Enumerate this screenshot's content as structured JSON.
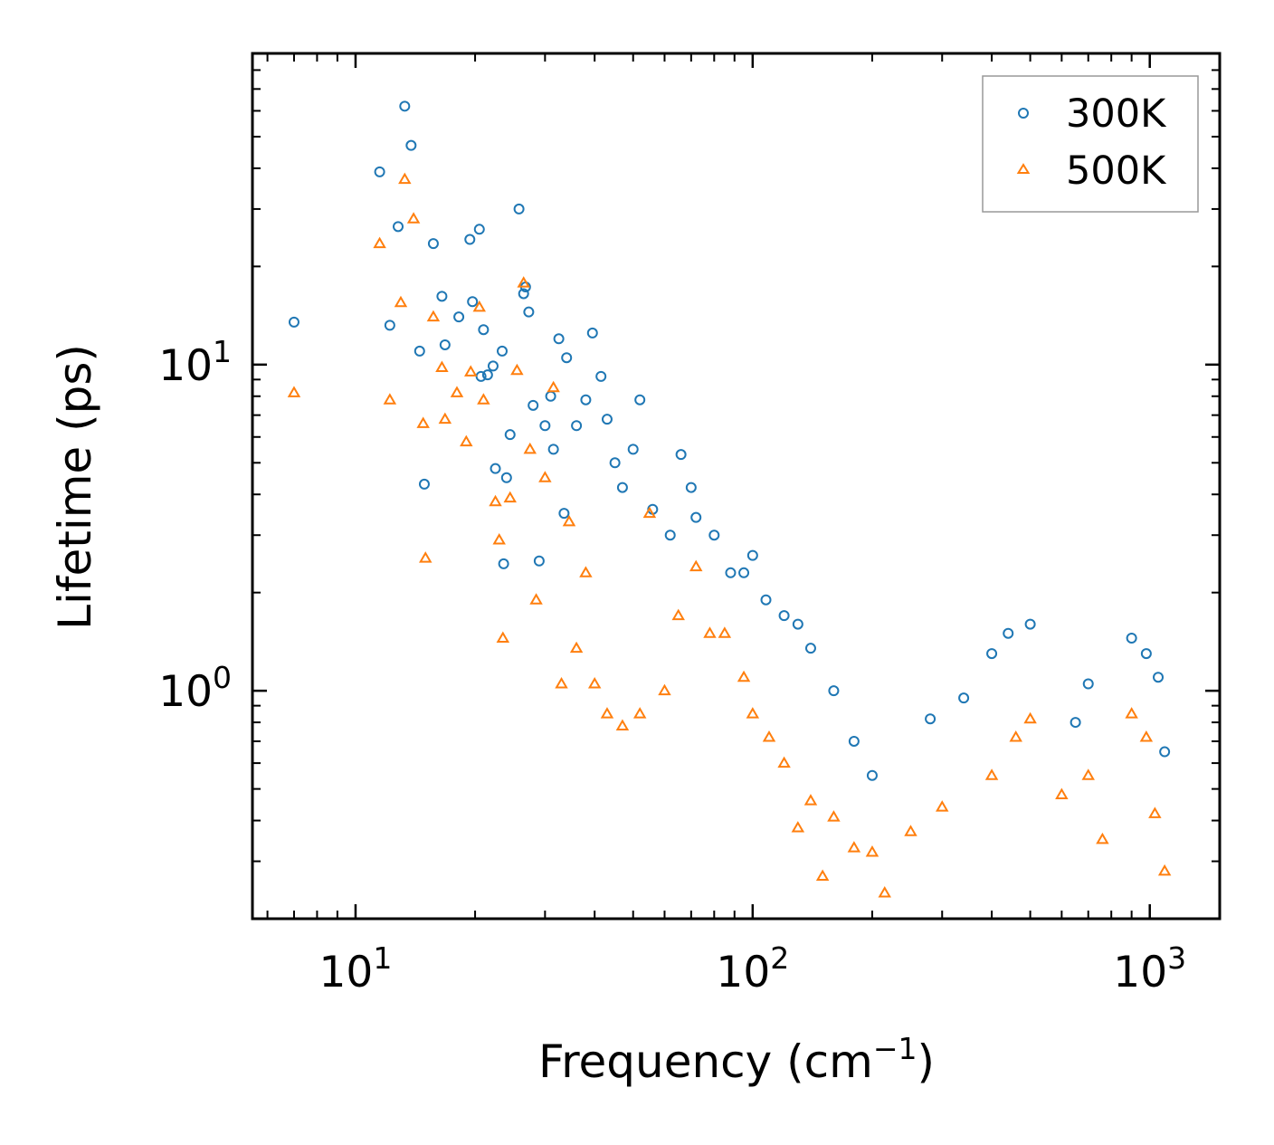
{
  "chart_data": {
    "type": "scatter",
    "xscale": "log",
    "yscale": "log",
    "xlabel": "Frequency (cm",
    "xlabel_sup": "−1",
    "xlabel_end": ")",
    "ylabel": "Lifetime (ps)",
    "xlim": [
      5.5,
      1500
    ],
    "ylim": [
      0.2,
      90
    ],
    "x_ticks": [
      {
        "value": 10,
        "base": "10",
        "exp": "1"
      },
      {
        "value": 100,
        "base": "10",
        "exp": "2"
      },
      {
        "value": 1000,
        "base": "10",
        "exp": "3"
      }
    ],
    "y_ticks": [
      {
        "value": 1,
        "base": "10",
        "exp": "0"
      },
      {
        "value": 10,
        "base": "10",
        "exp": "1"
      }
    ],
    "legend_position": "top-right",
    "series": [
      {
        "name": "300K",
        "marker": "circle",
        "color": "#1f77b4",
        "points": [
          [
            7.0,
            13.5
          ],
          [
            11.5,
            39
          ],
          [
            12.2,
            13.2
          ],
          [
            12.8,
            26.5
          ],
          [
            13.3,
            62
          ],
          [
            13.8,
            47
          ],
          [
            14.5,
            11.0
          ],
          [
            14.9,
            4.3
          ],
          [
            15.7,
            23.5
          ],
          [
            16.5,
            16.2
          ],
          [
            16.8,
            11.5
          ],
          [
            18.2,
            14.0
          ],
          [
            19.4,
            24.2
          ],
          [
            19.7,
            15.6
          ],
          [
            20.5,
            26
          ],
          [
            20.7,
            9.2
          ],
          [
            21.0,
            12.8
          ],
          [
            21.5,
            9.3
          ],
          [
            22.2,
            9.9
          ],
          [
            22.5,
            4.8
          ],
          [
            23.4,
            11.0
          ],
          [
            23.6,
            2.45
          ],
          [
            24.0,
            4.5
          ],
          [
            24.5,
            6.1
          ],
          [
            25.8,
            30
          ],
          [
            26.5,
            16.5
          ],
          [
            26.8,
            17.3
          ],
          [
            27.3,
            14.5
          ],
          [
            28.0,
            7.5
          ],
          [
            29.0,
            2.5
          ],
          [
            30.0,
            6.5
          ],
          [
            31.0,
            8.0
          ],
          [
            31.5,
            5.5
          ],
          [
            32.5,
            12.0
          ],
          [
            33.5,
            3.5
          ],
          [
            34.0,
            10.5
          ],
          [
            36.0,
            6.5
          ],
          [
            38.0,
            7.8
          ],
          [
            39.5,
            12.5
          ],
          [
            41.5,
            9.2
          ],
          [
            43.0,
            6.8
          ],
          [
            45.0,
            5.0
          ],
          [
            47.0,
            4.2
          ],
          [
            50.0,
            5.5
          ],
          [
            52.0,
            7.8
          ],
          [
            56.0,
            3.6
          ],
          [
            62.0,
            3.0
          ],
          [
            66.0,
            5.3
          ],
          [
            70.0,
            4.2
          ],
          [
            72.0,
            3.4
          ],
          [
            80.0,
            3.0
          ],
          [
            88.0,
            2.3
          ],
          [
            95.0,
            2.3
          ],
          [
            100.0,
            2.6
          ],
          [
            108.0,
            1.9
          ],
          [
            120.0,
            1.7
          ],
          [
            130.0,
            1.6
          ],
          [
            140.0,
            1.35
          ],
          [
            160.0,
            1.0
          ],
          [
            180.0,
            0.7
          ],
          [
            200.0,
            0.55
          ],
          [
            280.0,
            0.82
          ],
          [
            340.0,
            0.95
          ],
          [
            400.0,
            1.3
          ],
          [
            440.0,
            1.5
          ],
          [
            500.0,
            1.6
          ],
          [
            650.0,
            0.8
          ],
          [
            700.0,
            1.05
          ],
          [
            900.0,
            1.45
          ],
          [
            980.0,
            1.3
          ],
          [
            1050.0,
            1.1
          ],
          [
            1090.0,
            0.65
          ]
        ]
      },
      {
        "name": "500K",
        "marker": "triangle",
        "color": "#ff7f0e",
        "points": [
          [
            7.0,
            8.2
          ],
          [
            11.5,
            23.5
          ],
          [
            12.2,
            7.8
          ],
          [
            13.0,
            15.5
          ],
          [
            13.3,
            37
          ],
          [
            14.0,
            28
          ],
          [
            14.8,
            6.6
          ],
          [
            15.0,
            2.55
          ],
          [
            15.7,
            14.0
          ],
          [
            16.5,
            9.8
          ],
          [
            16.8,
            6.8
          ],
          [
            18.0,
            8.2
          ],
          [
            19.0,
            5.8
          ],
          [
            19.5,
            9.5
          ],
          [
            20.5,
            15.0
          ],
          [
            21.0,
            7.8
          ],
          [
            22.5,
            3.8
          ],
          [
            23.0,
            2.9
          ],
          [
            23.5,
            1.45
          ],
          [
            24.5,
            3.9
          ],
          [
            25.5,
            9.6
          ],
          [
            26.5,
            17.8
          ],
          [
            27.5,
            5.5
          ],
          [
            28.5,
            1.9
          ],
          [
            30.0,
            4.5
          ],
          [
            31.5,
            8.5
          ],
          [
            33.0,
            1.05
          ],
          [
            34.5,
            3.3
          ],
          [
            36.0,
            1.35
          ],
          [
            38.0,
            2.3
          ],
          [
            40.0,
            1.05
          ],
          [
            43.0,
            0.85
          ],
          [
            47.0,
            0.78
          ],
          [
            52.0,
            0.85
          ],
          [
            55.0,
            3.5
          ],
          [
            60.0,
            1.0
          ],
          [
            65.0,
            1.7
          ],
          [
            72.0,
            2.4
          ],
          [
            78.0,
            1.5
          ],
          [
            85.0,
            1.5
          ],
          [
            95.0,
            1.1
          ],
          [
            100.0,
            0.85
          ],
          [
            110.0,
            0.72
          ],
          [
            120.0,
            0.6
          ],
          [
            130.0,
            0.38
          ],
          [
            140.0,
            0.46
          ],
          [
            150.0,
            0.27
          ],
          [
            160.0,
            0.41
          ],
          [
            180.0,
            0.33
          ],
          [
            200.0,
            0.32
          ],
          [
            215.0,
            0.24
          ],
          [
            250.0,
            0.37
          ],
          [
            300.0,
            0.44
          ],
          [
            400.0,
            0.55
          ],
          [
            460.0,
            0.72
          ],
          [
            500.0,
            0.82
          ],
          [
            600.0,
            0.48
          ],
          [
            700.0,
            0.55
          ],
          [
            760.0,
            0.35
          ],
          [
            900.0,
            0.85
          ],
          [
            980.0,
            0.72
          ],
          [
            1030.0,
            0.42
          ],
          [
            1090.0,
            0.28
          ]
        ]
      }
    ]
  }
}
